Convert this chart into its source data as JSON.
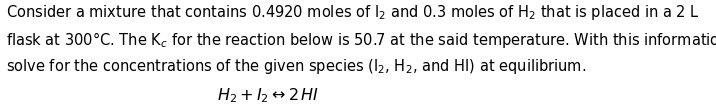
{
  "background_color": "#ffffff",
  "text_color": "#000000",
  "fig_width": 7.16,
  "fig_height": 1.06,
  "dpi": 100,
  "font_size_para": 10.5,
  "font_size_eq": 11.5,
  "line1": "Consider a mixture that contains 0.4920 moles of I$_2$ and 0.3 moles of H$_2$ that is placed in a 2 L",
  "line2": "flask at 300°C. The K$_c$ for the reaction below is 50.7 at the said temperature. With this information,",
  "line3": "solve for the concentrations of the given species (I$_2$, H$_2$, and HI) at equilibrium.",
  "equation": "$H_2 + I_2 \\leftrightarrow 2\\,HI$"
}
